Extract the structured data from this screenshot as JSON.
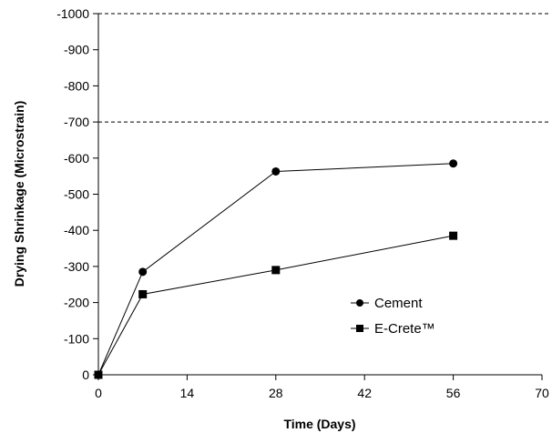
{
  "chart_data": {
    "type": "line",
    "xlabel": "Time (Days)",
    "ylabel": "Drying Shrinkage (Microstrain)",
    "xlim": [
      0,
      70
    ],
    "ylim": [
      0,
      -1000
    ],
    "xticks": [
      0,
      14,
      28,
      42,
      56,
      70
    ],
    "yticks": [
      0,
      -100,
      -200,
      -300,
      -400,
      -500,
      -600,
      -700,
      -800,
      -900,
      -1000
    ],
    "reference_lines": [
      -700,
      -1000
    ],
    "legend_position": "lower-right",
    "series": [
      {
        "name": "Cement",
        "marker": "circle",
        "x": [
          0,
          7,
          28,
          56
        ],
        "y": [
          0,
          -285,
          -563,
          -585
        ]
      },
      {
        "name": "E-Crete™",
        "marker": "square",
        "x": [
          0,
          7,
          28,
          56
        ],
        "y": [
          0,
          -223,
          -290,
          -385
        ]
      }
    ]
  }
}
